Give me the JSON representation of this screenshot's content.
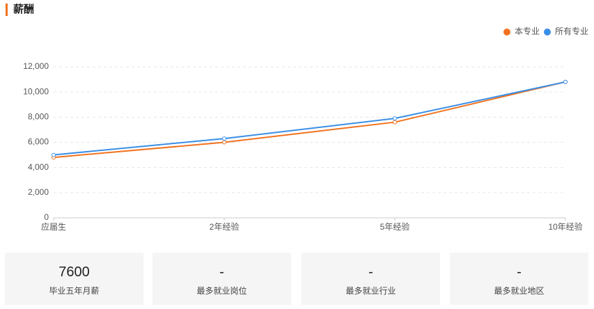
{
  "header": {
    "title": "薪酬"
  },
  "chart_data": {
    "type": "line",
    "categories": [
      "应届生",
      "2年经验",
      "5年经验",
      "10年经验"
    ],
    "series": [
      {
        "name": "本专业",
        "color": "#f0721f",
        "values": [
          4800,
          6000,
          7600,
          10800
        ]
      },
      {
        "name": "所有专业",
        "color": "#3a8ee6",
        "values": [
          5000,
          6300,
          7900,
          10800
        ]
      }
    ],
    "ylim": [
      0,
      12000
    ],
    "yticks": [
      0,
      {
        "value": 2000,
        "label": "2,000"
      },
      {
        "value": 4000,
        "label": "4,000"
      },
      {
        "value": 6000,
        "label": "6,000"
      },
      {
        "value": 8000,
        "label": "8,000"
      },
      {
        "value": 10000,
        "label": "10,000"
      },
      {
        "value": 12000,
        "label": "12,000"
      }
    ],
    "grid": true,
    "legend": "top-right"
  },
  "cards": [
    {
      "value": "7600",
      "label": "毕业五年月薪"
    },
    {
      "value": "-",
      "label": "最多就业岗位"
    },
    {
      "value": "-",
      "label": "最多就业行业"
    },
    {
      "value": "-",
      "label": "最多就业地区"
    }
  ]
}
